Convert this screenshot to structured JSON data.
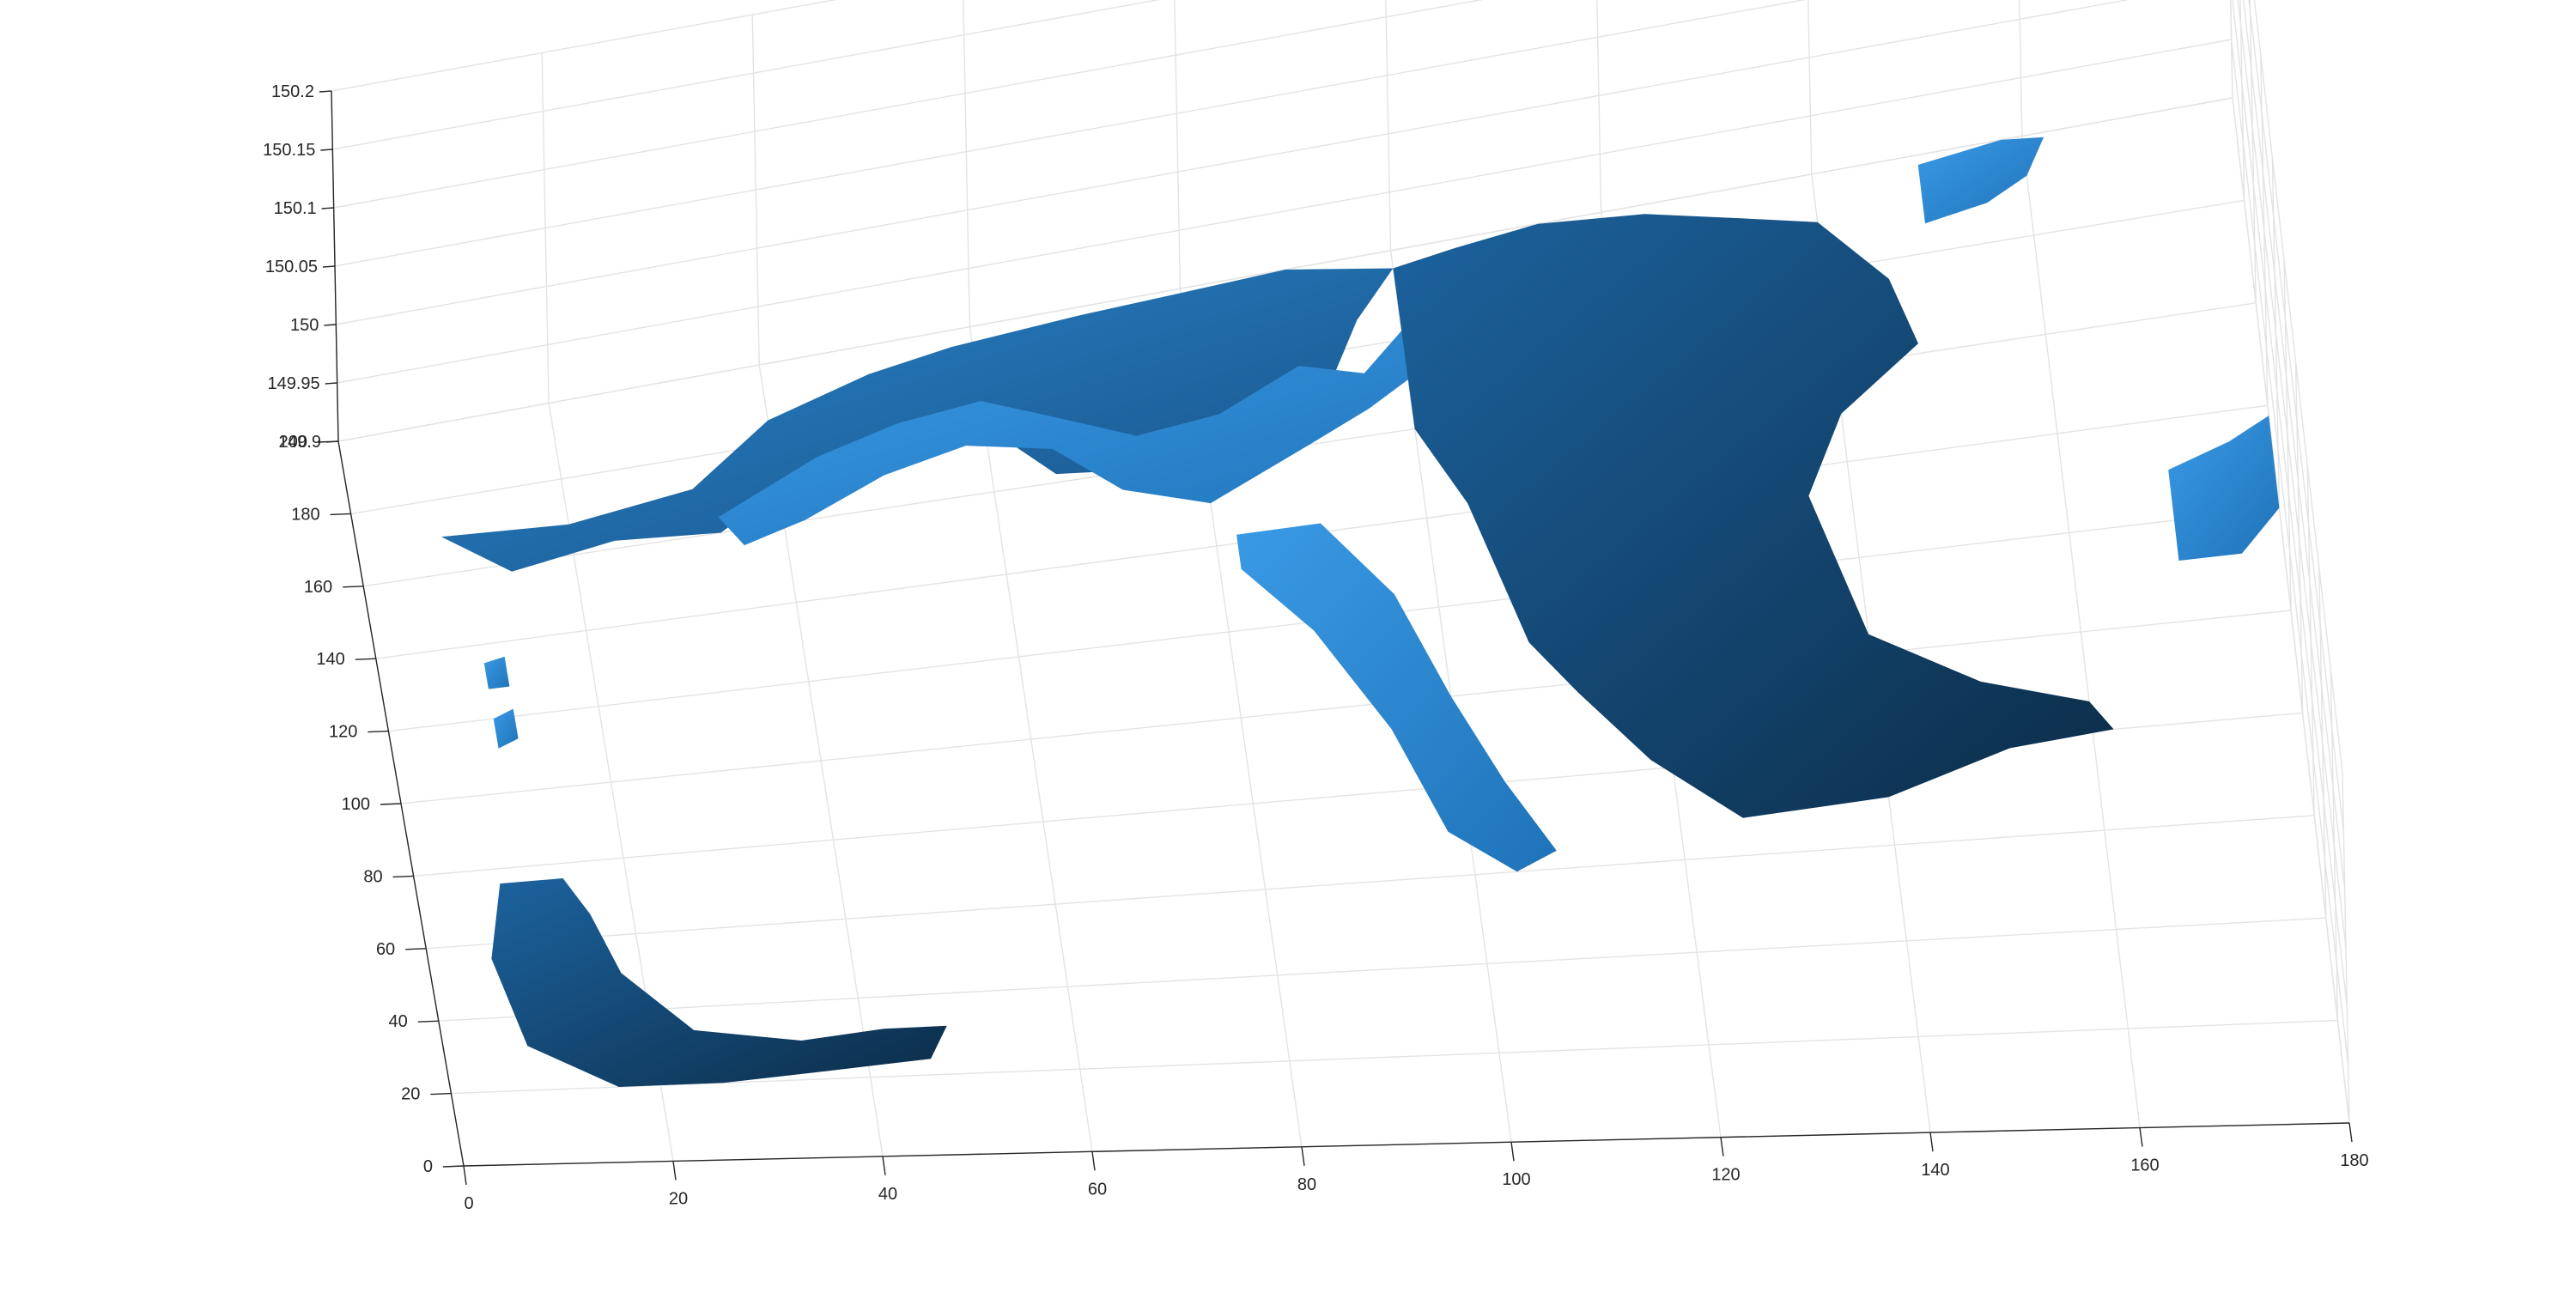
{
  "chart_data": {
    "type": "surface",
    "title": "",
    "xlabel": "",
    "ylabel": "",
    "zlabel": "",
    "xlim": [
      0,
      180
    ],
    "ylim": [
      0,
      200
    ],
    "zlim": [
      149.9,
      150.2
    ],
    "x_ticks": [
      "0",
      "20",
      "40",
      "60",
      "80",
      "100",
      "120",
      "140",
      "160",
      "180"
    ],
    "y_ticks": [
      "0",
      "20",
      "40",
      "60",
      "80",
      "100",
      "120",
      "140",
      "160",
      "180",
      "200"
    ],
    "z_ticks": [
      "149.9",
      "149.95",
      "150",
      "150.05",
      "150.1",
      "150.15",
      "150.2"
    ],
    "grid": true,
    "colors": {
      "surface_light": "#2f8fdd",
      "surface_mid": "#1f6fb2",
      "surface_dark": "#0e3554"
    },
    "surface_patches": [
      {
        "name": "northwest-ridge",
        "shade": "mid",
        "outline": [
          [
            8,
            170
          ],
          [
            20,
            168
          ],
          [
            32,
            172
          ],
          [
            40,
            186
          ],
          [
            50,
            193
          ],
          [
            58,
            196
          ],
          [
            70,
            198
          ],
          [
            80,
            199
          ],
          [
            90,
            200
          ],
          [
            100,
            196
          ],
          [
            96,
            186
          ],
          [
            92,
            170
          ],
          [
            86,
            162
          ],
          [
            80,
            168
          ],
          [
            74,
            160
          ],
          [
            66,
            162
          ],
          [
            60,
            176
          ],
          [
            52,
            178
          ],
          [
            44,
            174
          ],
          [
            34,
            160
          ],
          [
            24,
            162
          ],
          [
            14,
            158
          ],
          [
            8,
            170
          ]
        ]
      },
      {
        "name": "north-arch",
        "shade": "light",
        "outline": [
          [
            34,
            164
          ],
          [
            44,
            175
          ],
          [
            52,
            180
          ],
          [
            60,
            182
          ],
          [
            66,
            176
          ],
          [
            74,
            168
          ],
          [
            82,
            170
          ],
          [
            90,
            178
          ],
          [
            96,
            174
          ],
          [
            100,
            182
          ],
          [
            104,
            176
          ],
          [
            96,
            166
          ],
          [
            90,
            160
          ],
          [
            80,
            150
          ],
          [
            72,
            156
          ],
          [
            66,
            168
          ],
          [
            58,
            172
          ],
          [
            50,
            168
          ],
          [
            42,
            160
          ],
          [
            36,
            156
          ],
          [
            34,
            164
          ]
        ]
      },
      {
        "name": "east-basin",
        "shade": "dark",
        "outline": [
          [
            100,
            196
          ],
          [
            106,
            198
          ],
          [
            114,
            200
          ],
          [
            124,
            198
          ],
          [
            132,
            194
          ],
          [
            140,
            190
          ],
          [
            146,
            176
          ],
          [
            148,
            162
          ],
          [
            140,
            150
          ],
          [
            136,
            134
          ],
          [
            140,
            104
          ],
          [
            150,
            92
          ],
          [
            160,
            86
          ],
          [
            162,
            80
          ],
          [
            152,
            78
          ],
          [
            140,
            70
          ],
          [
            126,
            68
          ],
          [
            118,
            82
          ],
          [
            112,
            98
          ],
          [
            108,
            110
          ],
          [
            106,
            126
          ],
          [
            104,
            142
          ],
          [
            100,
            160
          ],
          [
            100,
            196
          ]
        ]
      },
      {
        "name": "east-channel",
        "shade": "light",
        "outline": [
          [
            82,
            142
          ],
          [
            90,
            142
          ],
          [
            96,
            124
          ],
          [
            100,
            100
          ],
          [
            104,
            80
          ],
          [
            108,
            64
          ],
          [
            104,
            60
          ],
          [
            98,
            70
          ],
          [
            94,
            94
          ],
          [
            88,
            118
          ],
          [
            82,
            134
          ],
          [
            82,
            142
          ]
        ]
      },
      {
        "name": "southwest-lobe",
        "shade": "dark",
        "outline": [
          [
            8,
            76
          ],
          [
            14,
            76
          ],
          [
            16,
            66
          ],
          [
            18,
            50
          ],
          [
            24,
            34
          ],
          [
            34,
            30
          ],
          [
            42,
            32
          ],
          [
            48,
            32
          ],
          [
            46,
            24
          ],
          [
            36,
            22
          ],
          [
            26,
            20
          ],
          [
            16,
            20
          ],
          [
            8,
            32
          ],
          [
            6,
            56
          ],
          [
            8,
            76
          ]
        ]
      },
      {
        "name": "far-east-patch",
        "shade": "light",
        "outline": [
          [
            170,
            130
          ],
          [
            176,
            134
          ],
          [
            180,
            138
          ],
          [
            180,
            120
          ],
          [
            176,
            112
          ],
          [
            170,
            112
          ],
          [
            170,
            130
          ]
        ]
      },
      {
        "name": "northeast-fragment",
        "shade": "light",
        "outline": [
          [
            150,
            198
          ],
          [
            158,
            200
          ],
          [
            162,
            199
          ],
          [
            160,
            192
          ],
          [
            156,
            188
          ],
          [
            150,
            186
          ],
          [
            150,
            198
          ]
        ]
      },
      {
        "name": "west-speck-1",
        "shade": "light",
        "outline": [
          [
            10,
            135
          ],
          [
            12,
            136
          ],
          [
            12,
            128
          ],
          [
            10,
            128
          ],
          [
            10,
            135
          ]
        ]
      },
      {
        "name": "west-speck-2",
        "shade": "light",
        "outline": [
          [
            10,
            120
          ],
          [
            12,
            122
          ],
          [
            12,
            114
          ],
          [
            10,
            112
          ],
          [
            10,
            120
          ]
        ]
      }
    ]
  }
}
